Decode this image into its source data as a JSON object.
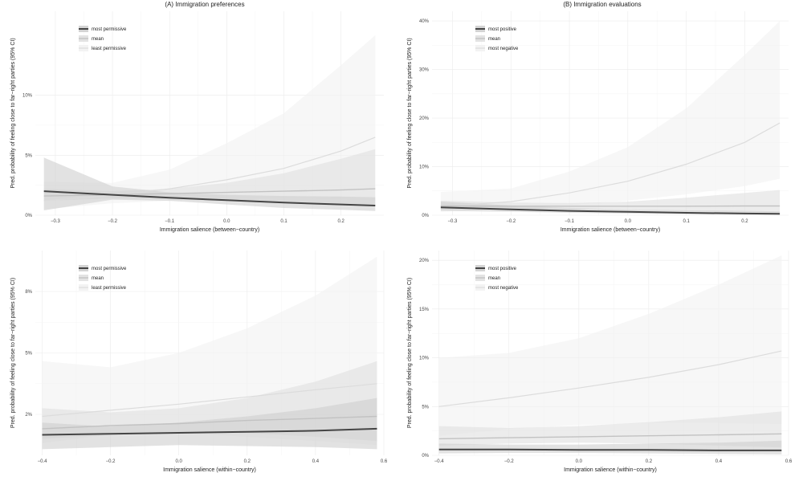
{
  "figure": {
    "column_titles": [
      "(A) Immigration preferences",
      "(B) Immigration evaluations"
    ]
  },
  "colors": {
    "band_top": "#f2f2f2",
    "band_mid": "#e0e0e0",
    "band_bottom": "#cfcfcf",
    "line_top": "#dcdcdc",
    "line_mid": "#c2c2c2",
    "line_bottom": "#454545"
  },
  "chart_data": [
    {
      "id": "A1",
      "type": "line",
      "column_title": "(A) Immigration preferences",
      "xlabel": "Immigration salience (between−country)",
      "ylabel": "Pred. probability of feeling close to far−right parties (95% CI)",
      "x_ticks": [
        -0.3,
        -0.2,
        -0.1,
        0.0,
        0.1,
        0.2
      ],
      "x_tick_labels": [
        "−0.3",
        "−0.2",
        "−0.1",
        "0.0",
        "0.1",
        "0.2"
      ],
      "xlim": [
        -0.335,
        0.275
      ],
      "y_ticks": [
        0,
        5,
        10
      ],
      "y_tick_labels": [
        "0%",
        "5%",
        "10%"
      ],
      "ylim": [
        0,
        17
      ],
      "legend": [
        "most permissive",
        "mean",
        "least permissive"
      ],
      "legend_position": "top-left",
      "series": [
        {
          "name": "most permissive",
          "x": [
            -0.32,
            -0.2,
            -0.1,
            0.0,
            0.1,
            0.2,
            0.26
          ],
          "values": [
            2.0,
            1.7,
            1.45,
            1.25,
            1.05,
            0.9,
            0.8
          ],
          "lower": [
            0.4,
            1.3,
            1.2,
            0.9,
            0.6,
            0.45,
            0.35
          ],
          "upper": [
            4.8,
            2.4,
            1.9,
            1.7,
            1.6,
            1.55,
            1.5
          ]
        },
        {
          "name": "mean",
          "x": [
            -0.32,
            -0.2,
            -0.1,
            0.0,
            0.1,
            0.2,
            0.26
          ],
          "values": [
            1.6,
            1.7,
            1.8,
            1.9,
            2.0,
            2.1,
            2.2
          ],
          "lower": [
            1.2,
            1.4,
            1.4,
            1.2,
            1.1,
            0.9,
            0.8
          ],
          "upper": [
            2.2,
            2.0,
            2.2,
            2.7,
            3.5,
            4.7,
            5.5
          ]
        },
        {
          "name": "least permissive",
          "x": [
            -0.32,
            -0.2,
            -0.1,
            0.0,
            0.1,
            0.2,
            0.26
          ],
          "values": [
            1.2,
            1.65,
            2.2,
            2.95,
            3.9,
            5.35,
            6.5
          ],
          "lower": [
            0.5,
            1.0,
            1.2,
            1.4,
            1.4,
            1.3,
            1.2
          ],
          "upper": [
            2.8,
            2.7,
            3.8,
            6.0,
            8.5,
            12.5,
            15.0
          ]
        }
      ]
    },
    {
      "id": "B1",
      "type": "line",
      "column_title": "(B) Immigration evaluations",
      "xlabel": "Immigration salience (between−country)",
      "ylabel": "Pred. probability of feeling close to far−right parties (95% CI)",
      "x_ticks": [
        -0.3,
        -0.2,
        -0.1,
        0.0,
        0.1,
        0.2
      ],
      "x_tick_labels": [
        "−0.3",
        "−0.2",
        "−0.1",
        "0.0",
        "0.1",
        "0.2"
      ],
      "xlim": [
        -0.335,
        0.275
      ],
      "y_ticks": [
        0,
        10,
        20,
        30,
        40
      ],
      "y_tick_labels": [
        "0%",
        "10%",
        "20%",
        "30%",
        "40%"
      ],
      "ylim": [
        0,
        42
      ],
      "legend": [
        "most positive",
        "mean",
        "most negative"
      ],
      "legend_position": "top-left",
      "series": [
        {
          "name": "most positive",
          "x": [
            -0.32,
            -0.2,
            -0.1,
            0.0,
            0.1,
            0.2,
            0.26
          ],
          "values": [
            1.6,
            1.2,
            0.9,
            0.7,
            0.5,
            0.35,
            0.3
          ],
          "lower": [
            0.9,
            0.7,
            0.5,
            0.35,
            0.2,
            0.1,
            0.05
          ],
          "upper": [
            2.8,
            2.0,
            1.5,
            1.2,
            1.0,
            0.9,
            0.8
          ]
        },
        {
          "name": "mean",
          "x": [
            -0.32,
            -0.2,
            -0.1,
            0.0,
            0.1,
            0.2,
            0.26
          ],
          "values": [
            1.9,
            1.85,
            1.85,
            1.85,
            1.85,
            1.9,
            1.9
          ],
          "lower": [
            1.2,
            1.3,
            1.3,
            1.2,
            0.9,
            0.7,
            0.6
          ],
          "upper": [
            3.0,
            2.6,
            2.5,
            2.8,
            3.6,
            4.6,
            5.2
          ]
        },
        {
          "name": "most negative",
          "x": [
            -0.32,
            -0.2,
            -0.1,
            0.0,
            0.1,
            0.2,
            0.26
          ],
          "values": [
            1.8,
            2.8,
            4.6,
            7.0,
            10.5,
            15.0,
            19.0
          ],
          "lower": [
            0.7,
            1.4,
            2.1,
            3.0,
            4.3,
            6.0,
            7.5
          ],
          "upper": [
            4.8,
            5.5,
            9.0,
            14.0,
            22.0,
            33.0,
            40.0
          ]
        }
      ]
    },
    {
      "id": "A2",
      "type": "line",
      "column_title": "(A) Immigration preferences",
      "xlabel": "Immigration salience (within−country)",
      "ylabel": "Pred. probability of feeling close to far−right parties (95% CI)",
      "x_ticks": [
        -0.4,
        -0.2,
        0.0,
        0.2,
        0.4,
        0.6
      ],
      "x_tick_labels": [
        "−0.4",
        "−0.2",
        "0.0",
        "0.2",
        "0.4",
        "0.6"
      ],
      "xlim": [
        -0.42,
        0.6
      ],
      "y_ticks": [
        2,
        5,
        8
      ],
      "y_tick_labels": [
        "2%",
        "5%",
        "8%"
      ],
      "ylim": [
        0,
        10
      ],
      "legend": [
        "most permissive",
        "mean",
        "least permissive"
      ],
      "legend_position": "top-left",
      "series": [
        {
          "name": "most permissive",
          "x": [
            -0.4,
            -0.2,
            0.0,
            0.2,
            0.4,
            0.58
          ],
          "values": [
            1.0,
            1.05,
            1.1,
            1.15,
            1.2,
            1.3
          ],
          "lower": [
            0.3,
            0.4,
            0.5,
            0.45,
            0.4,
            0.3
          ],
          "upper": [
            1.6,
            1.4,
            1.6,
            1.9,
            2.3,
            2.8
          ]
        },
        {
          "name": "mean",
          "x": [
            -0.4,
            -0.2,
            0.0,
            0.2,
            0.4,
            0.58
          ],
          "values": [
            1.3,
            1.45,
            1.55,
            1.7,
            1.8,
            1.9
          ],
          "lower": [
            0.8,
            1.0,
            1.1,
            1.1,
            0.9,
            0.7
          ],
          "upper": [
            2.3,
            2.1,
            2.3,
            2.8,
            3.6,
            4.6
          ]
        },
        {
          "name": "least permissive",
          "x": [
            -0.4,
            -0.2,
            0.0,
            0.2,
            0.4,
            0.58
          ],
          "values": [
            1.9,
            2.2,
            2.5,
            2.85,
            3.2,
            3.5
          ],
          "lower": [
            0.6,
            1.0,
            1.1,
            0.9,
            0.7,
            0.5
          ],
          "upper": [
            4.6,
            4.3,
            5.0,
            6.2,
            7.8,
            9.7
          ]
        }
      ]
    },
    {
      "id": "B2",
      "type": "line",
      "column_title": "(B) Immigration evaluations",
      "xlabel": "Immigration salience (within−country)",
      "ylabel": "Pred. probability of feeling close to far−right parties (95% CI)",
      "x_ticks": [
        -0.4,
        -0.2,
        0.0,
        0.2,
        0.4,
        0.6
      ],
      "x_tick_labels": [
        "−0.4",
        "−0.2",
        "0.0",
        "0.2",
        "0.4",
        "0.6"
      ],
      "xlim": [
        -0.42,
        0.6
      ],
      "y_ticks": [
        0,
        5,
        10,
        15,
        20
      ],
      "y_tick_labels": [
        "0%",
        "5%",
        "10%",
        "15%",
        "20%"
      ],
      "ylim": [
        0,
        21
      ],
      "legend": [
        "most positive",
        "mean",
        "most negative"
      ],
      "legend_position": "top-left",
      "series": [
        {
          "name": "most positive",
          "x": [
            -0.4,
            -0.2,
            0.0,
            0.2,
            0.4,
            0.58
          ],
          "values": [
            0.6,
            0.6,
            0.55,
            0.55,
            0.5,
            0.5
          ],
          "lower": [
            0.2,
            0.25,
            0.25,
            0.2,
            0.15,
            0.1
          ],
          "upper": [
            1.2,
            1.1,
            1.1,
            1.2,
            1.3,
            1.5
          ]
        },
        {
          "name": "mean",
          "x": [
            -0.4,
            -0.2,
            0.0,
            0.2,
            0.4,
            0.58
          ],
          "values": [
            1.7,
            1.8,
            1.9,
            2.0,
            2.1,
            2.2
          ],
          "lower": [
            1.0,
            1.2,
            1.3,
            1.2,
            1.0,
            0.8
          ],
          "upper": [
            3.0,
            2.8,
            3.0,
            3.4,
            3.9,
            4.5
          ]
        },
        {
          "name": "most negative",
          "x": [
            -0.4,
            -0.2,
            0.0,
            0.2,
            0.4,
            0.58
          ],
          "values": [
            5.0,
            5.9,
            6.9,
            8.0,
            9.3,
            10.7
          ],
          "lower": [
            2.0,
            2.7,
            3.1,
            3.3,
            3.3,
            3.2
          ],
          "upper": [
            10.0,
            10.5,
            12.0,
            14.5,
            17.5,
            20.5
          ]
        }
      ]
    }
  ]
}
